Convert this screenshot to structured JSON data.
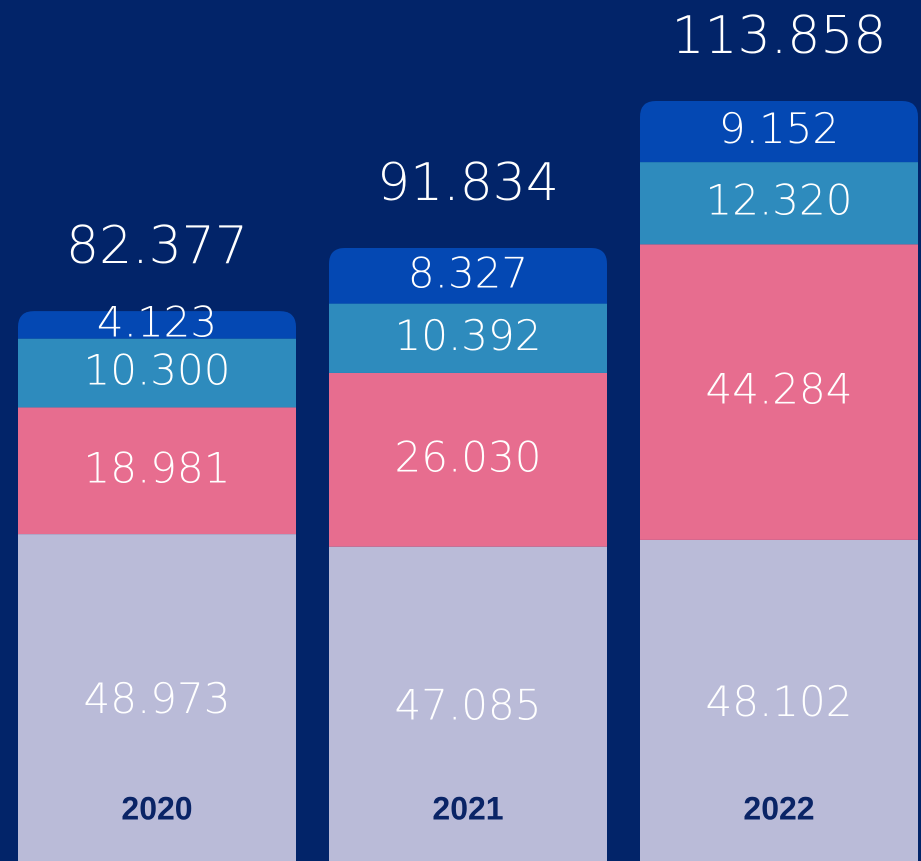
{
  "chart_data": {
    "type": "stacked-bar",
    "categories": [
      "2020",
      "2021",
      "2022"
    ],
    "series": [
      {
        "color": "#babbd8",
        "values": [
          48.973,
          47.085,
          48.102
        ],
        "value_labels": [
          "48.973",
          "47.085",
          "48.102"
        ]
      },
      {
        "color": "#e76d8f",
        "values": [
          18.981,
          26.03,
          44.284
        ],
        "value_labels": [
          "18.981",
          "26.030",
          "44.284"
        ]
      },
      {
        "color": "#2e8bbd",
        "values": [
          10.3,
          10.392,
          12.32
        ],
        "value_labels": [
          "10.300",
          "10.392",
          "12.320"
        ]
      },
      {
        "color": "#0448b3",
        "values": [
          4.123,
          8.327,
          9.152
        ],
        "value_labels": [
          "4.123",
          "8.327",
          "9.152"
        ]
      }
    ],
    "totals": [
      82.377,
      91.834,
      113.858
    ],
    "total_labels": [
      "82.377",
      "91.834",
      "113.858"
    ]
  }
}
